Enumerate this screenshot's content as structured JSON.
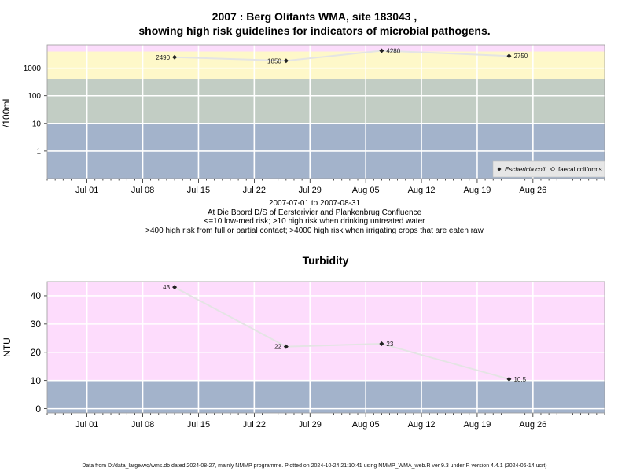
{
  "title_line1": "2007 : Berg Olifants WMA, site 183043 ,",
  "title_line2": "showing high risk guidelines for indicators of microbial pathogens.",
  "subtitle": {
    "line1": "2007-07-01 to 2007-08-31",
    "line2": "At Die Boord D/S of Eersterivier and Plankenbrug Confluence",
    "line3": "<=10 low-med risk; >10 high risk when drinking untreated water",
    "line4": ">400 high risk from full or partial contact; >4000 high risk when irrigating crops that are eaten raw"
  },
  "footer": "Data from D:/data_large/wq/wms.db dated 2024-08-27, mainly NMMP programme. Plotted on 2024-10-24 21:10:41 using NMMP_WMA_web.R ver 9.3 under R version 4.4.1 (2024-06-14 ucrt)",
  "colors": {
    "band_low": "#a3b3cb",
    "band_mid": "#c2cdc4",
    "band_high": "#fef8c9",
    "band_top": "#fbdcfb",
    "turb_high": "#fddcfc",
    "turb_low": "#a3b3cb",
    "line": "#e4e4e4",
    "grid": "#ffffff",
    "point": "#222222"
  },
  "chart_data": [
    {
      "type": "line",
      "title": "",
      "ylabel": "/100mL",
      "y_scale": "log10",
      "ylim": [
        0.1,
        7000
      ],
      "x_range": [
        "2007-06-26",
        "2007-09-04"
      ],
      "x_ticks": [
        "Jul 01",
        "Jul 08",
        "Jul 15",
        "Jul 22",
        "Jul 29",
        "Aug 05",
        "Aug 12",
        "Aug 19",
        "Aug 26"
      ],
      "y_ticks": [
        "1",
        "10",
        "100",
        "1000"
      ],
      "bands": [
        {
          "from": 0.1,
          "to": 10,
          "color": "#a3b3cb"
        },
        {
          "from": 10,
          "to": 400,
          "color": "#c2cdc4"
        },
        {
          "from": 400,
          "to": 4000,
          "color": "#fef8c9"
        },
        {
          "from": 4000,
          "to": 7000,
          "color": "#fbdcfb"
        }
      ],
      "series": [
        {
          "name": "Eschericia coli",
          "marker": "filled-diamond",
          "points": [
            {
              "x": "2007-07-12",
              "y": 2490,
              "label": "2490"
            },
            {
              "x": "2007-07-26",
              "y": 1850,
              "label": "1850"
            },
            {
              "x": "2007-08-07",
              "y": 4280,
              "label": "4280"
            },
            {
              "x": "2007-08-23",
              "y": 2750,
              "label": "2750"
            }
          ]
        },
        {
          "name": "faecal coliforms",
          "marker": "open-diamond",
          "points": []
        }
      ],
      "legend": "bottom-right"
    },
    {
      "type": "line",
      "title": "Turbidity",
      "ylabel": "NTU",
      "ylim": [
        -1.5,
        45
      ],
      "x_range": [
        "2007-06-26",
        "2007-09-04"
      ],
      "x_ticks": [
        "Jul 01",
        "Jul 08",
        "Jul 15",
        "Jul 22",
        "Jul 29",
        "Aug 05",
        "Aug 12",
        "Aug 19",
        "Aug 26"
      ],
      "y_ticks": [
        "0",
        "10",
        "20",
        "30",
        "40"
      ],
      "bands": [
        {
          "from": -1.5,
          "to": 10,
          "color": "#a3b3cb"
        },
        {
          "from": 10,
          "to": 45,
          "color": "#fddcfc"
        }
      ],
      "series": [
        {
          "marker": "filled-diamond",
          "points": [
            {
              "x": "2007-07-12",
              "y": 43,
              "label": "43"
            },
            {
              "x": "2007-07-26",
              "y": 22,
              "label": "22"
            },
            {
              "x": "2007-08-07",
              "y": 23,
              "label": "23"
            },
            {
              "x": "2007-08-23",
              "y": 10.5,
              "label": "10.5"
            }
          ]
        }
      ]
    }
  ]
}
